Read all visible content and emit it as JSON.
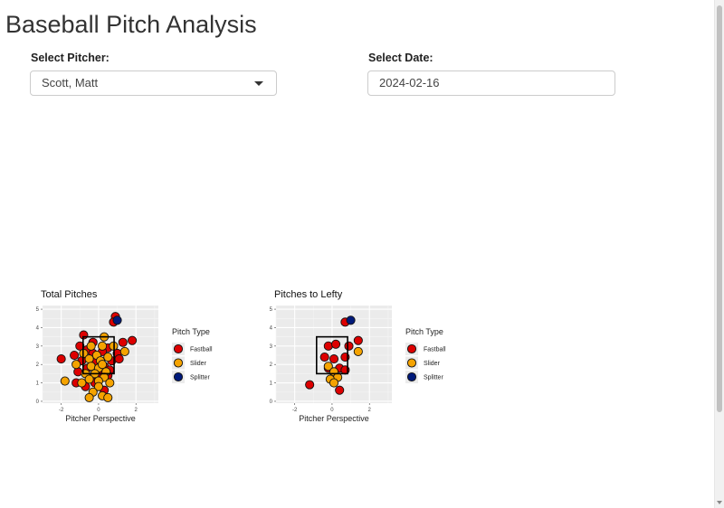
{
  "page": {
    "title": "Baseball Pitch Analysis",
    "pitcher_label": "Select Pitcher:",
    "pitcher_value": "Scott, Matt",
    "date_label": "Select Date:",
    "date_value": "2024-02-16"
  },
  "colors": {
    "Fastball": "#dd0000",
    "Slider": "#f5a300",
    "Splitter": "#001a7a",
    "panel": "#ebebeb"
  },
  "chart_data": [
    {
      "type": "scatter",
      "title": "Total Pitches",
      "xlabel": "Pitcher Perspective",
      "ylabel": "",
      "xlim": [
        -3,
        3.2
      ],
      "ylim": [
        -0.1,
        5.2
      ],
      "x_ticks": [
        "-2",
        "0",
        "2"
      ],
      "y_ticks": [
        "0",
        "1",
        "2",
        "3",
        "4",
        "5"
      ],
      "legend_title": "Pitch Type",
      "legend_position": "right",
      "strike_zone": {
        "x": [
          -0.83,
          0.83
        ],
        "y": [
          1.5,
          3.5
        ]
      },
      "series": [
        {
          "name": "Fastball",
          "points": [
            [
              0.9,
              4.6
            ],
            [
              0.8,
              4.3
            ],
            [
              -0.8,
              3.6
            ],
            [
              1.3,
              3.2
            ],
            [
              1.8,
              3.3
            ],
            [
              -1.0,
              3.0
            ],
            [
              -0.3,
              3.2
            ],
            [
              0.5,
              2.9
            ],
            [
              -0.6,
              2.8
            ],
            [
              0.2,
              2.7
            ],
            [
              1.0,
              2.6
            ],
            [
              -1.3,
              2.5
            ],
            [
              -2.0,
              2.3
            ],
            [
              -0.9,
              2.2
            ],
            [
              0.7,
              2.2
            ],
            [
              -0.2,
              2.1
            ],
            [
              0.3,
              1.9
            ],
            [
              -0.6,
              1.8
            ],
            [
              0.6,
              1.7
            ],
            [
              -1.1,
              1.6
            ],
            [
              0.0,
              1.5
            ],
            [
              0.5,
              1.4
            ],
            [
              -0.4,
              1.3
            ],
            [
              -0.2,
              1.0
            ],
            [
              -1.2,
              1.0
            ],
            [
              -0.7,
              0.8
            ],
            [
              0.3,
              0.6
            ],
            [
              1.1,
              2.3
            ],
            [
              -0.3,
              2.6
            ]
          ]
        },
        {
          "name": "Slider",
          "points": [
            [
              0.3,
              3.5
            ],
            [
              -0.4,
              3.0
            ],
            [
              0.2,
              3.0
            ],
            [
              0.8,
              3.0
            ],
            [
              -0.8,
              2.6
            ],
            [
              -0.1,
              2.5
            ],
            [
              0.5,
              2.4
            ],
            [
              -0.5,
              2.3
            ],
            [
              0.1,
              2.2
            ],
            [
              -1.2,
              2.0
            ],
            [
              -0.4,
              1.9
            ],
            [
              0.0,
              1.8
            ],
            [
              0.4,
              1.6
            ],
            [
              -0.7,
              1.5
            ],
            [
              -0.2,
              1.5
            ],
            [
              0.3,
              1.3
            ],
            [
              -0.5,
              1.2
            ],
            [
              0.0,
              1.1
            ],
            [
              -1.8,
              1.1
            ],
            [
              -0.9,
              1.0
            ],
            [
              0.6,
              1.0
            ],
            [
              0.0,
              0.8
            ],
            [
              -0.3,
              0.5
            ],
            [
              -0.5,
              0.2
            ],
            [
              0.2,
              0.3
            ],
            [
              0.5,
              0.2
            ],
            [
              1.4,
              2.7
            ],
            [
              0.2,
              2.0
            ]
          ]
        },
        {
          "name": "Splitter",
          "points": [
            [
              1.0,
              4.4
            ]
          ]
        }
      ]
    },
    {
      "type": "scatter",
      "title": "Pitches to Lefty",
      "xlabel": "Pitcher Perspective",
      "ylabel": "",
      "xlim": [
        -3,
        3.2
      ],
      "ylim": [
        -0.1,
        5.2
      ],
      "x_ticks": [
        "-2",
        "0",
        "2"
      ],
      "y_ticks": [
        "0",
        "1",
        "2",
        "3",
        "4",
        "5"
      ],
      "legend_title": "Pitch Type",
      "legend_position": "right",
      "strike_zone": {
        "x": [
          -0.83,
          0.83
        ],
        "y": [
          1.5,
          3.5
        ]
      },
      "series": [
        {
          "name": "Fastball",
          "points": [
            [
              0.7,
              4.3
            ],
            [
              1.4,
              3.3
            ],
            [
              -0.2,
              3.0
            ],
            [
              0.2,
              3.1
            ],
            [
              0.9,
              3.0
            ],
            [
              -0.4,
              2.4
            ],
            [
              0.1,
              2.3
            ],
            [
              0.7,
              2.4
            ],
            [
              -0.2,
              1.8
            ],
            [
              0.4,
              1.8
            ],
            [
              0.7,
              1.7
            ],
            [
              -1.2,
              0.9
            ],
            [
              0.4,
              0.6
            ]
          ]
        },
        {
          "name": "Slider",
          "points": [
            [
              1.4,
              2.7
            ],
            [
              -0.2,
              1.9
            ],
            [
              0.1,
              1.6
            ],
            [
              0.3,
              1.3
            ],
            [
              -0.1,
              1.2
            ],
            [
              0.1,
              1.0
            ]
          ]
        },
        {
          "name": "Splitter",
          "points": [
            [
              1.0,
              4.4
            ]
          ]
        }
      ]
    }
  ]
}
